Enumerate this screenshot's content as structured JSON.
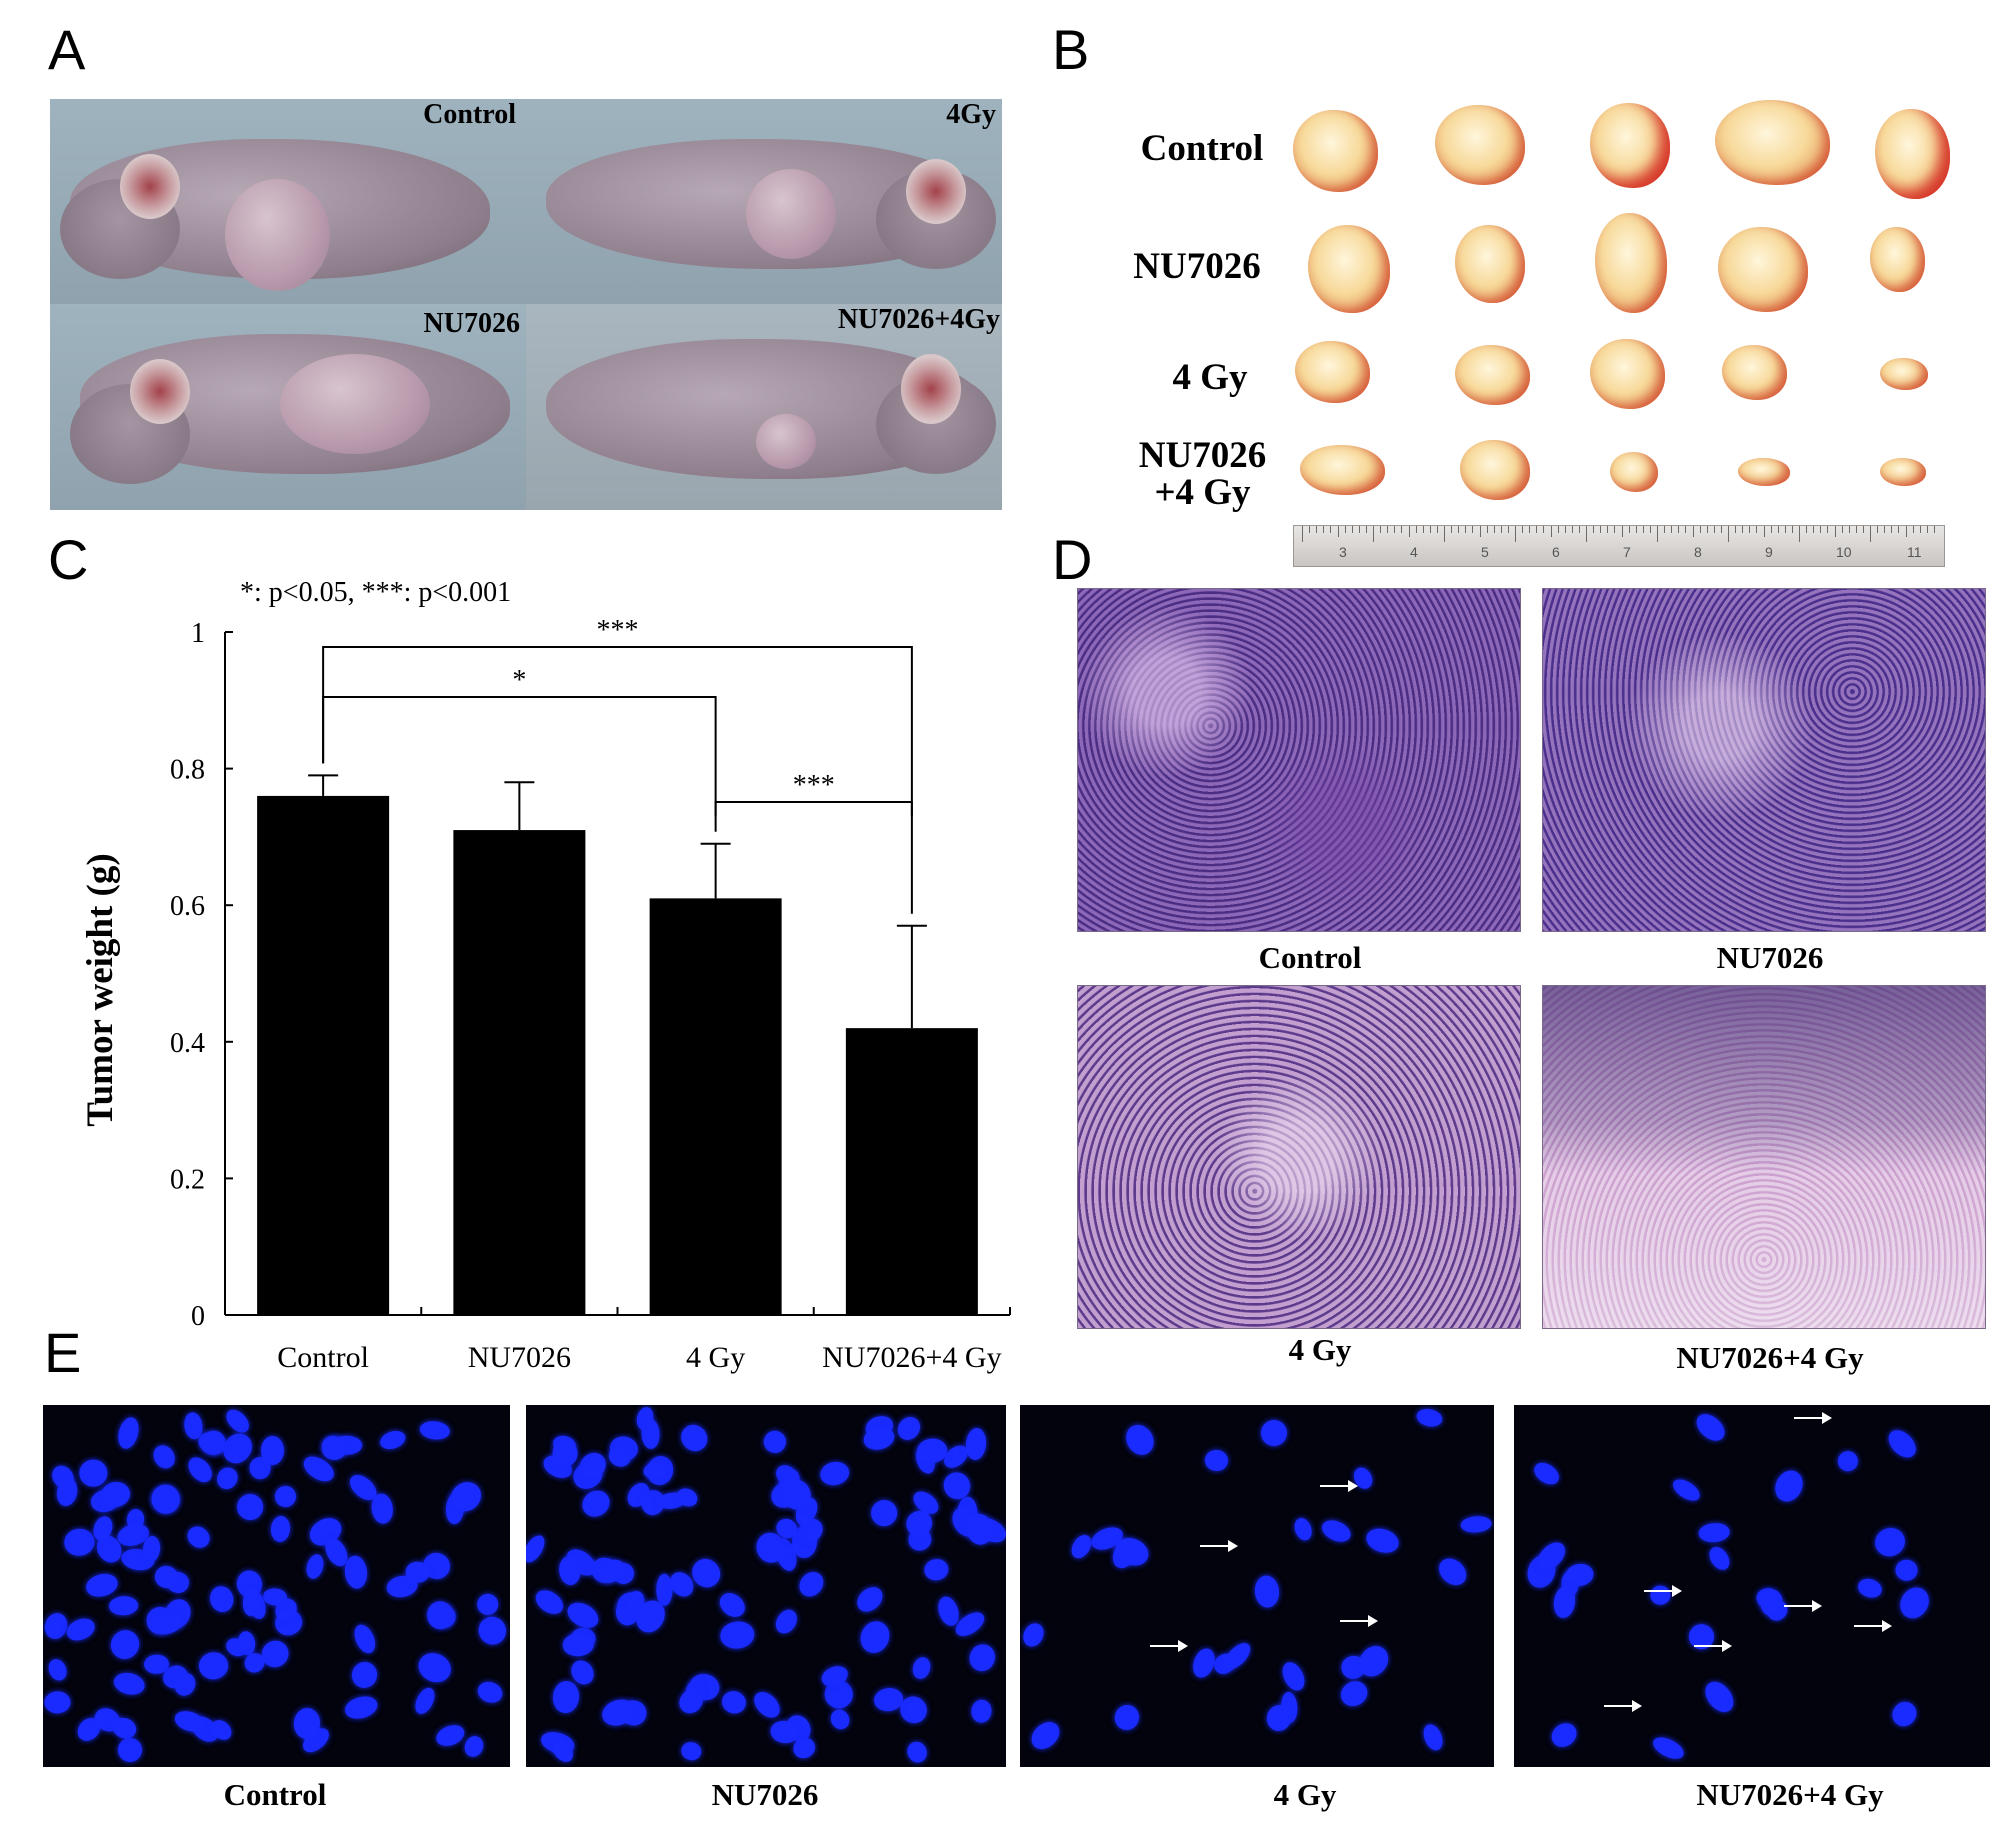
{
  "panels": {
    "a": {
      "letter": "A",
      "labels": [
        "Control",
        "4Gy",
        "NU7026",
        "NU7026+4Gy"
      ]
    },
    "b": {
      "letter": "B",
      "rows": [
        "Control",
        "NU7026",
        "4 Gy",
        "NU7026\n+4 Gy"
      ],
      "ruler_ticks": [
        "3",
        "4",
        "5",
        "6",
        "7",
        "8",
        "9",
        "10",
        "11"
      ]
    },
    "c": {
      "letter": "C",
      "significance_legend": "*: p<0.05, ***: p<0.001",
      "brackets": [
        {
          "from": "Control",
          "to": "4 Gy",
          "stars": "*"
        },
        {
          "from": "Control",
          "to": "NU7026+4 Gy",
          "stars": "***"
        },
        {
          "from": "4 Gy",
          "to": "NU7026+4 Gy",
          "stars": "***"
        }
      ]
    },
    "d": {
      "letter": "D",
      "labels": [
        "Control",
        "NU7026",
        "4 Gy",
        "NU7026+4 Gy"
      ]
    },
    "e": {
      "letter": "E",
      "labels": [
        "Control",
        "NU7026",
        "4 Gy",
        "NU7026+4 Gy"
      ]
    }
  },
  "colors": {
    "bar": "#000000",
    "nucleus": "#1a2bff",
    "fluorescence_background": "#02030c",
    "histology": "#8a62b0"
  },
  "chart_data": {
    "type": "bar",
    "title": "",
    "categories": [
      "Control",
      "NU7026",
      "4 Gy",
      "NU7026+4 Gy"
    ],
    "values": [
      0.76,
      0.71,
      0.61,
      0.42
    ],
    "error": [
      0.03,
      0.07,
      0.08,
      0.15
    ],
    "xlabel": "",
    "ylabel": "Tumor weight (g)",
    "ylim": [
      0,
      1
    ],
    "yticks": [
      "0",
      "0.2",
      "0.4",
      "0.6",
      "0.8",
      "1"
    ],
    "grid": false
  }
}
